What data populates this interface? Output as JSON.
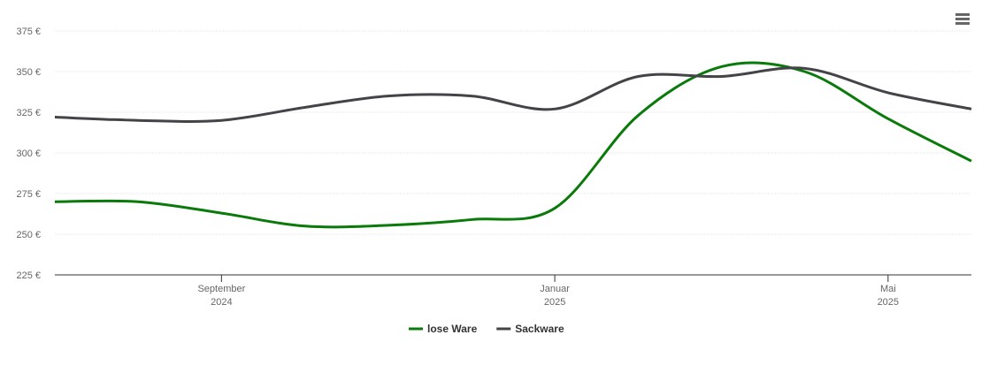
{
  "chart_data": {
    "type": "line",
    "x": [
      "2024-07",
      "2024-08",
      "2024-09",
      "2024-10",
      "2024-11",
      "2024-12",
      "2025-01",
      "2025-02",
      "2025-03",
      "2025-04",
      "2025-05",
      "2025-06"
    ],
    "xlim": [
      "2024-07",
      "2025-06"
    ],
    "xticks": [
      {
        "value": "2024-09",
        "label": "September 2024"
      },
      {
        "value": "2025-01",
        "label": "Januar 2025"
      },
      {
        "value": "2025-05",
        "label": "Mai 2025"
      }
    ],
    "ylim": [
      225,
      375
    ],
    "yticks": [
      {
        "value": 225,
        "label": "225 €"
      },
      {
        "value": 250,
        "label": "250 €"
      },
      {
        "value": 275,
        "label": "275 €"
      },
      {
        "value": 300,
        "label": "300 €"
      },
      {
        "value": 325,
        "label": "325 €"
      },
      {
        "value": 350,
        "label": "350 €"
      },
      {
        "value": 375,
        "label": "375 €"
      }
    ],
    "grid": true,
    "legend": "bottom",
    "series": [
      {
        "name": "lose Ware",
        "color": "#0a7a0a",
        "values": [
          270,
          270,
          263,
          255,
          255.5,
          259,
          266,
          323,
          353,
          350,
          321,
          295
        ]
      },
      {
        "name": "Sackware",
        "color": "#434348",
        "values": [
          322,
          320,
          320,
          328,
          335,
          335,
          327,
          347,
          347,
          352,
          337,
          327
        ]
      }
    ]
  }
}
